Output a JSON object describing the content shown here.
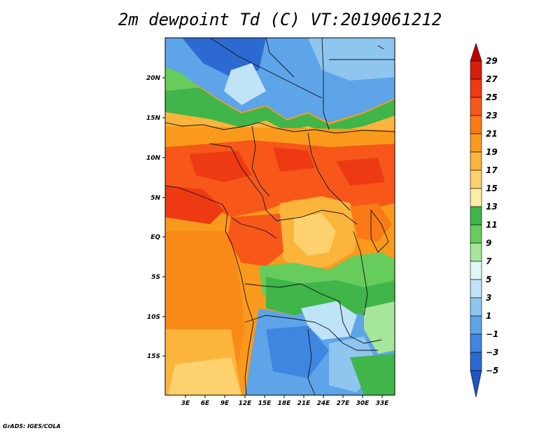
{
  "title": "2m dewpoint Td (C) VT:2019061212",
  "credit": "GrADS: IGES/COLA",
  "map": {
    "lat_labels": [
      "20N",
      "15N",
      "10N",
      "5N",
      "EQ",
      "5S",
      "10S",
      "15S"
    ],
    "lon_labels": [
      "3E",
      "6E",
      "9E",
      "12E",
      "15E",
      "18E",
      "21E",
      "24E",
      "27E",
      "30E",
      "33E"
    ]
  },
  "colorbar": {
    "levels": [
      "29",
      "27",
      "25",
      "23",
      "21",
      "19",
      "17",
      "15",
      "13",
      "11",
      "9",
      "7",
      "5",
      "3",
      "1",
      "−1",
      "−3",
      "−5"
    ],
    "colors": [
      "#c00000",
      "#d81e0b",
      "#ee3a12",
      "#f7581a",
      "#fa7a16",
      "#fa9a1c",
      "#fbb43c",
      "#fdd26e",
      "#fdeea6",
      "#3fb54a",
      "#66cc5c",
      "#a6e69a",
      "#e0f7f7",
      "#bfe3f7",
      "#8fc6f0",
      "#5ea4e8",
      "#3f86e0",
      "#2c6ad2",
      "#1f56c2"
    ]
  }
}
